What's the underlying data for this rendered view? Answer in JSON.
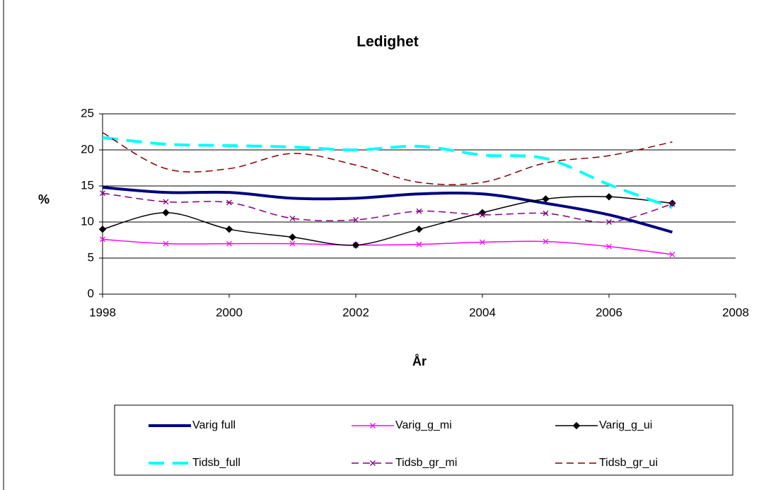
{
  "chart_data": {
    "type": "line",
    "title": "Ledighet",
    "x_label": "År",
    "y_label": "%",
    "x": [
      1998,
      1999,
      2000,
      2001,
      2002,
      2003,
      2004,
      2005,
      2006,
      2007
    ],
    "xlim": [
      1998,
      2008
    ],
    "xticks": [
      1998,
      2000,
      2002,
      2004,
      2006,
      2008
    ],
    "ylim": [
      0,
      25
    ],
    "yticks": [
      0,
      5,
      10,
      15,
      20,
      25
    ],
    "grid": true,
    "smooth": true,
    "legend": "bottom",
    "series": [
      {
        "name": "Varig full",
        "color": "#000080",
        "width": 4,
        "dash": false,
        "marker": null,
        "values": [
          14.8,
          14.1,
          14.1,
          13.3,
          13.3,
          13.9,
          13.9,
          12.6,
          11.0,
          8.6
        ]
      },
      {
        "name": "Varig_g_mi",
        "color": "#ff00ff",
        "width": 1.5,
        "dash": false,
        "marker": "x",
        "values": [
          7.6,
          7.0,
          7.0,
          7.0,
          6.8,
          6.9,
          7.2,
          7.3,
          6.6,
          5.5
        ]
      },
      {
        "name": "Varig_g_ui",
        "color": "#000000",
        "width": 1.5,
        "dash": false,
        "marker": "diamond",
        "values": [
          9.0,
          11.3,
          9.0,
          7.9,
          6.8,
          9.0,
          11.3,
          13.2,
          13.5,
          12.6
        ]
      },
      {
        "name": "Tidsb_full",
        "color": "#00ffff",
        "width": 4,
        "dash": true,
        "marker": null,
        "values": [
          21.7,
          20.8,
          20.6,
          20.4,
          20.0,
          20.5,
          19.3,
          18.8,
          15.2,
          12.0
        ]
      },
      {
        "name": "Tidsb_gr_mi",
        "color": "#800080",
        "width": 1.5,
        "dash": true,
        "marker": "x",
        "values": [
          14.0,
          12.8,
          12.7,
          10.5,
          10.3,
          11.5,
          11.0,
          11.2,
          10.0,
          12.5
        ]
      },
      {
        "name": "Tidsb_gr_ui",
        "color": "#800000",
        "width": 1.5,
        "dash": true,
        "marker": null,
        "values": [
          22.4,
          17.4,
          17.4,
          19.5,
          17.9,
          15.5,
          15.5,
          18.2,
          19.2,
          21.1
        ]
      }
    ]
  }
}
